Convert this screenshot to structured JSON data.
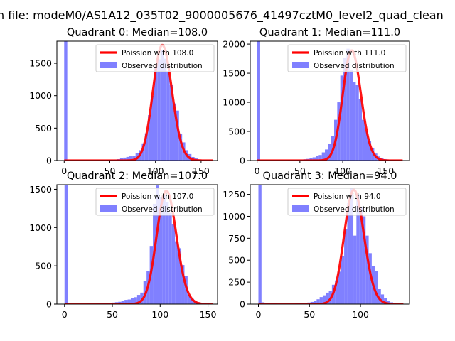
{
  "figure": {
    "suptitle": "n file: modeM0/AS1A12_035T02_9000005676_41497cztM0_level2_quad_clean"
  },
  "colors": {
    "histogram": "#8080ff",
    "poisson_line": "#ff0000",
    "axes": "#000000",
    "background": "#ffffff"
  },
  "chart_data": [
    {
      "type": "bar",
      "title": "Quadrant 0: Median=108.0",
      "xlim": [
        -8,
        168
      ],
      "ylim": [
        0,
        1840
      ],
      "xticks": [
        0,
        50,
        100,
        150
      ],
      "yticks": [
        0,
        500,
        1000,
        1500
      ],
      "bin_width": 3.4,
      "legend": {
        "position": "top-right",
        "line_label": "Poission with 108.0",
        "bar_label": "Observed distribution"
      },
      "poisson": {
        "mean": 108.0,
        "peak": 1780,
        "x_range": [
          0,
          163
        ]
      },
      "hist_x": [
        0,
        3.4,
        6.8,
        10.2,
        13.6,
        17,
        20.4,
        23.8,
        27.2,
        30.6,
        34,
        37.4,
        40.8,
        44.2,
        47.6,
        51,
        54.4,
        57.8,
        61.2,
        64.6,
        68,
        71.4,
        74.8,
        78.2,
        81.6,
        85,
        88.4,
        91.8,
        95.2,
        98.6,
        102,
        105.4,
        108.8,
        112.2,
        115.6,
        119,
        122.4,
        125.8,
        129.2,
        132.6,
        136,
        139.4,
        142.8,
        146.2,
        149.6,
        153,
        156.4,
        159.8
      ],
      "hist_values": [
        1840,
        5,
        4,
        4,
        4,
        5,
        4,
        4,
        5,
        5,
        6,
        6,
        8,
        8,
        10,
        12,
        16,
        22,
        42,
        45,
        56,
        65,
        75,
        110,
        160,
        265,
        420,
        700,
        1000,
        1440,
        1560,
        1700,
        1570,
        1370,
        1170,
        880,
        770,
        410,
        280,
        160,
        100,
        55,
        32,
        18,
        12,
        9,
        7,
        5
      ]
    },
    {
      "type": "bar",
      "title": "Quadrant 1: Median=111.0",
      "xlim": [
        -8,
        178
      ],
      "ylim": [
        0,
        2050
      ],
      "xticks": [
        0,
        50,
        100,
        150
      ],
      "yticks": [
        0,
        500,
        1000,
        1500,
        2000
      ],
      "bin_width": 3.6,
      "legend": {
        "position": "top-right",
        "line_label": "Poission with 111.0",
        "bar_label": "Observed distribution"
      },
      "poisson": {
        "mean": 111.0,
        "peak": 1890,
        "x_range": [
          0,
          170
        ]
      },
      "hist_x": [
        0,
        3.6,
        7.2,
        10.8,
        14.4,
        18,
        21.6,
        25.2,
        28.8,
        32.4,
        36,
        39.6,
        43.2,
        46.8,
        50.4,
        54,
        57.6,
        61.2,
        64.8,
        68.4,
        72,
        75.6,
        79.2,
        82.8,
        86.4,
        90,
        93.6,
        97.2,
        100.8,
        104.4,
        108,
        111.6,
        115.2,
        118.8,
        122.4,
        126,
        129.6,
        133.2,
        136.8,
        140.4,
        144,
        147.6,
        151.2,
        154.8,
        158.4,
        162,
        165.6,
        169.2
      ],
      "hist_values": [
        2050,
        6,
        5,
        4,
        4,
        5,
        5,
        6,
        6,
        6,
        8,
        9,
        10,
        12,
        15,
        22,
        28,
        40,
        55,
        75,
        95,
        140,
        190,
        290,
        420,
        700,
        1000,
        1460,
        1770,
        1920,
        1560,
        1350,
        1300,
        1050,
        700,
        500,
        330,
        210,
        120,
        70,
        40,
        25,
        15,
        10,
        8,
        6,
        5,
        4
      ]
    },
    {
      "type": "bar",
      "title": "Quadrant 2: Median=107.0",
      "xlim": [
        -8,
        160
      ],
      "ylim": [
        0,
        1560
      ],
      "xticks": [
        0,
        50,
        100,
        150
      ],
      "yticks": [
        0,
        500,
        1000,
        1500
      ],
      "bin_width": 3.3,
      "legend": {
        "position": "top-right",
        "line_label": "Poission with 107.0",
        "bar_label": "Observed distribution"
      },
      "poisson": {
        "mean": 107.0,
        "peak": 1480,
        "x_range": [
          0,
          155
        ]
      },
      "hist_x": [
        0,
        3.3,
        6.6,
        9.9,
        13.2,
        16.5,
        19.8,
        23.1,
        26.4,
        29.7,
        33,
        36.3,
        39.6,
        42.9,
        46.2,
        49.5,
        52.8,
        56.1,
        59.4,
        62.7,
        66,
        69.3,
        72.6,
        75.9,
        79.2,
        82.5,
        85.8,
        89.1,
        92.4,
        95.7,
        99,
        102.3,
        105.6,
        108.9,
        112.2,
        115.5,
        118.8,
        122.1,
        125.4,
        128.7,
        132,
        135.3,
        138.6,
        141.9,
        145.2,
        148.5,
        151.8
      ],
      "hist_values": [
        1560,
        4,
        4,
        4,
        5,
        5,
        5,
        6,
        6,
        7,
        8,
        9,
        10,
        12,
        15,
        20,
        25,
        30,
        45,
        55,
        60,
        75,
        90,
        120,
        150,
        300,
        430,
        760,
        1310,
        1550,
        1400,
        1420,
        1330,
        1190,
        1040,
        820,
        730,
        510,
        370,
        120,
        70,
        40,
        25,
        15,
        10,
        8,
        6
      ]
    },
    {
      "type": "bar",
      "title": "Quadrant 3: Median=94.0",
      "xlim": [
        -8,
        148
      ],
      "ylim": [
        0,
        1360
      ],
      "xticks": [
        0,
        50,
        100
      ],
      "yticks": [
        0,
        250,
        500,
        750,
        1000,
        1250
      ],
      "bin_width": 3.0,
      "legend": {
        "position": "top-right",
        "line_label": "Poission with 94.0",
        "bar_label": "Observed distribution"
      },
      "poisson": {
        "mean": 94.0,
        "peak": 1300,
        "x_range": [
          0,
          142
        ]
      },
      "hist_x": [
        0,
        3,
        6,
        9,
        12,
        15,
        18,
        21,
        24,
        27,
        30,
        33,
        36,
        39,
        42,
        45,
        48,
        51,
        54,
        57,
        60,
        63,
        66,
        69,
        72,
        75,
        78,
        81,
        84,
        87,
        90,
        93,
        96,
        99,
        102,
        105,
        108,
        111,
        114,
        117,
        120,
        123,
        126,
        129,
        132,
        135,
        138,
        141
      ],
      "hist_values": [
        1360,
        20,
        15,
        10,
        8,
        8,
        6,
        6,
        6,
        6,
        6,
        6,
        8,
        10,
        12,
        14,
        18,
        25,
        35,
        55,
        80,
        100,
        130,
        150,
        220,
        270,
        370,
        550,
        850,
        1150,
        1320,
        780,
        1250,
        1110,
        1000,
        780,
        580,
        430,
        380,
        170,
        110,
        70,
        40,
        20,
        10,
        6,
        5,
        4
      ]
    }
  ]
}
